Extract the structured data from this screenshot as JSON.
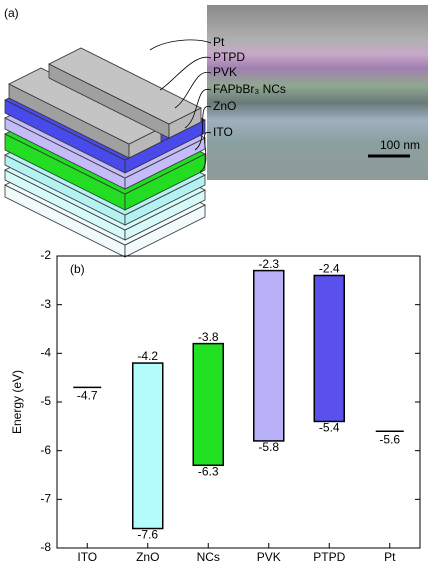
{
  "panel_a": {
    "label": "(a)",
    "layers": [
      "Pt",
      "PTPD",
      "PVK",
      "FAPbBr₃ NCs",
      "ZnO",
      "ITO"
    ],
    "scale_bar": "100 nm"
  },
  "chart_data": {
    "type": "energy-levels",
    "label": "(b)",
    "ylabel": "Energy (eV)",
    "categories": [
      "ITO",
      "ZnO",
      "NCs",
      "PVK",
      "PTPD",
      "Pt"
    ],
    "lumo": [
      null,
      -4.2,
      -3.8,
      -2.3,
      -2.4,
      null
    ],
    "homo": [
      null,
      -7.6,
      -6.3,
      -5.8,
      -5.4,
      null
    ],
    "work_function": [
      -4.7,
      null,
      null,
      null,
      null,
      -5.6
    ],
    "colors": [
      null,
      "#b4fcfc",
      "#22e022",
      "#b8b0f8",
      "#5a50ec",
      null
    ],
    "ylim": [
      -8,
      -2
    ],
    "yticks": [
      -8,
      -7,
      -6,
      -5,
      -4,
      -3,
      -2
    ]
  }
}
